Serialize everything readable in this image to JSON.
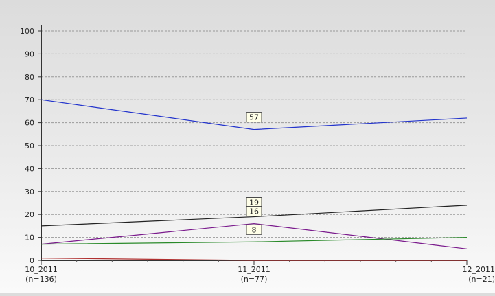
{
  "chart_data": {
    "type": "line",
    "categories": [
      "10_2011",
      "11_2011",
      "12_2011"
    ],
    "category_counts": [
      "(n=136)",
      "(n=77)",
      "(n=21)"
    ],
    "ylim": [
      0,
      100
    ],
    "yticks": [
      0,
      10,
      20,
      30,
      40,
      50,
      60,
      70,
      80,
      90,
      100
    ],
    "grid": true,
    "series": [
      {
        "color": "#2233cc",
        "values": [
          70,
          57,
          62
        ]
      },
      {
        "color": "#222222",
        "values": [
          15,
          19,
          24
        ]
      },
      {
        "color": "#7a1a8c",
        "values": [
          7,
          16,
          5
        ]
      },
      {
        "color": "#2a8a2a",
        "values": [
          7,
          8,
          10
        ]
      },
      {
        "color": "#b03030",
        "values": [
          1,
          0,
          0
        ]
      }
    ],
    "data_labels": [
      {
        "series_index": 0,
        "point_index": 1,
        "text": "57"
      },
      {
        "series_index": 1,
        "point_index": 1,
        "text": "19"
      },
      {
        "series_index": 2,
        "point_index": 1,
        "text": "16"
      },
      {
        "series_index": 3,
        "point_index": 1,
        "text": "8"
      }
    ]
  }
}
